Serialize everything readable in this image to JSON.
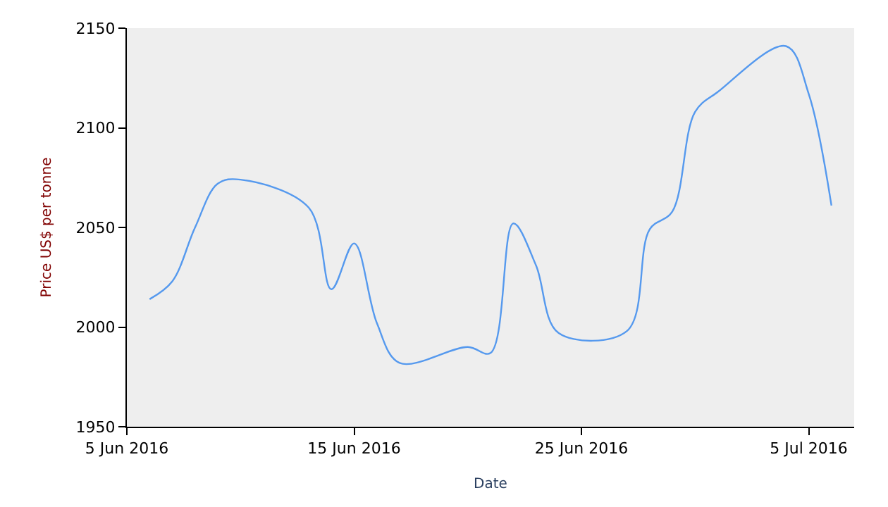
{
  "chart_data": {
    "type": "line",
    "xlabel": "Date",
    "ylabel": "Price US$ per tonne",
    "x": [
      "2016-06-06",
      "2016-06-07",
      "2016-06-08",
      "2016-06-09",
      "2016-06-10",
      "2016-06-13",
      "2016-06-14",
      "2016-06-15",
      "2016-06-16",
      "2016-06-17",
      "2016-06-20",
      "2016-06-21",
      "2016-06-22",
      "2016-06-23",
      "2016-06-24",
      "2016-06-27",
      "2016-06-28",
      "2016-06-29",
      "2016-06-30",
      "2016-07-01",
      "2016-07-04",
      "2016-07-05",
      "2016-07-06"
    ],
    "series": [
      {
        "color": "#5599ee",
        "values": [
          2014,
          2023,
          2050,
          2072,
          2074,
          2060,
          2019,
          2042,
          2002,
          1982,
          1990,
          1987,
          2052,
          2031,
          1997,
          1998,
          2049,
          2058,
          2108,
          2118,
          2141,
          2117,
          2061
        ]
      }
    ],
    "xlim": [
      "2016-06-05",
      "2016-07-07"
    ],
    "xticks": [
      {
        "value": "2016-06-05",
        "label": "5 Jun 2016"
      },
      {
        "value": "2016-06-15",
        "label": "15 Jun 2016"
      },
      {
        "value": "2016-06-25",
        "label": "25 Jun 2016"
      },
      {
        "value": "2016-07-05",
        "label": "5 Jul 2016"
      }
    ],
    "ylim": [
      1950,
      2150
    ],
    "yticks": [
      1950,
      2000,
      2050,
      2100,
      2150
    ],
    "grid": false,
    "marker": "none",
    "line_style": "solid"
  }
}
